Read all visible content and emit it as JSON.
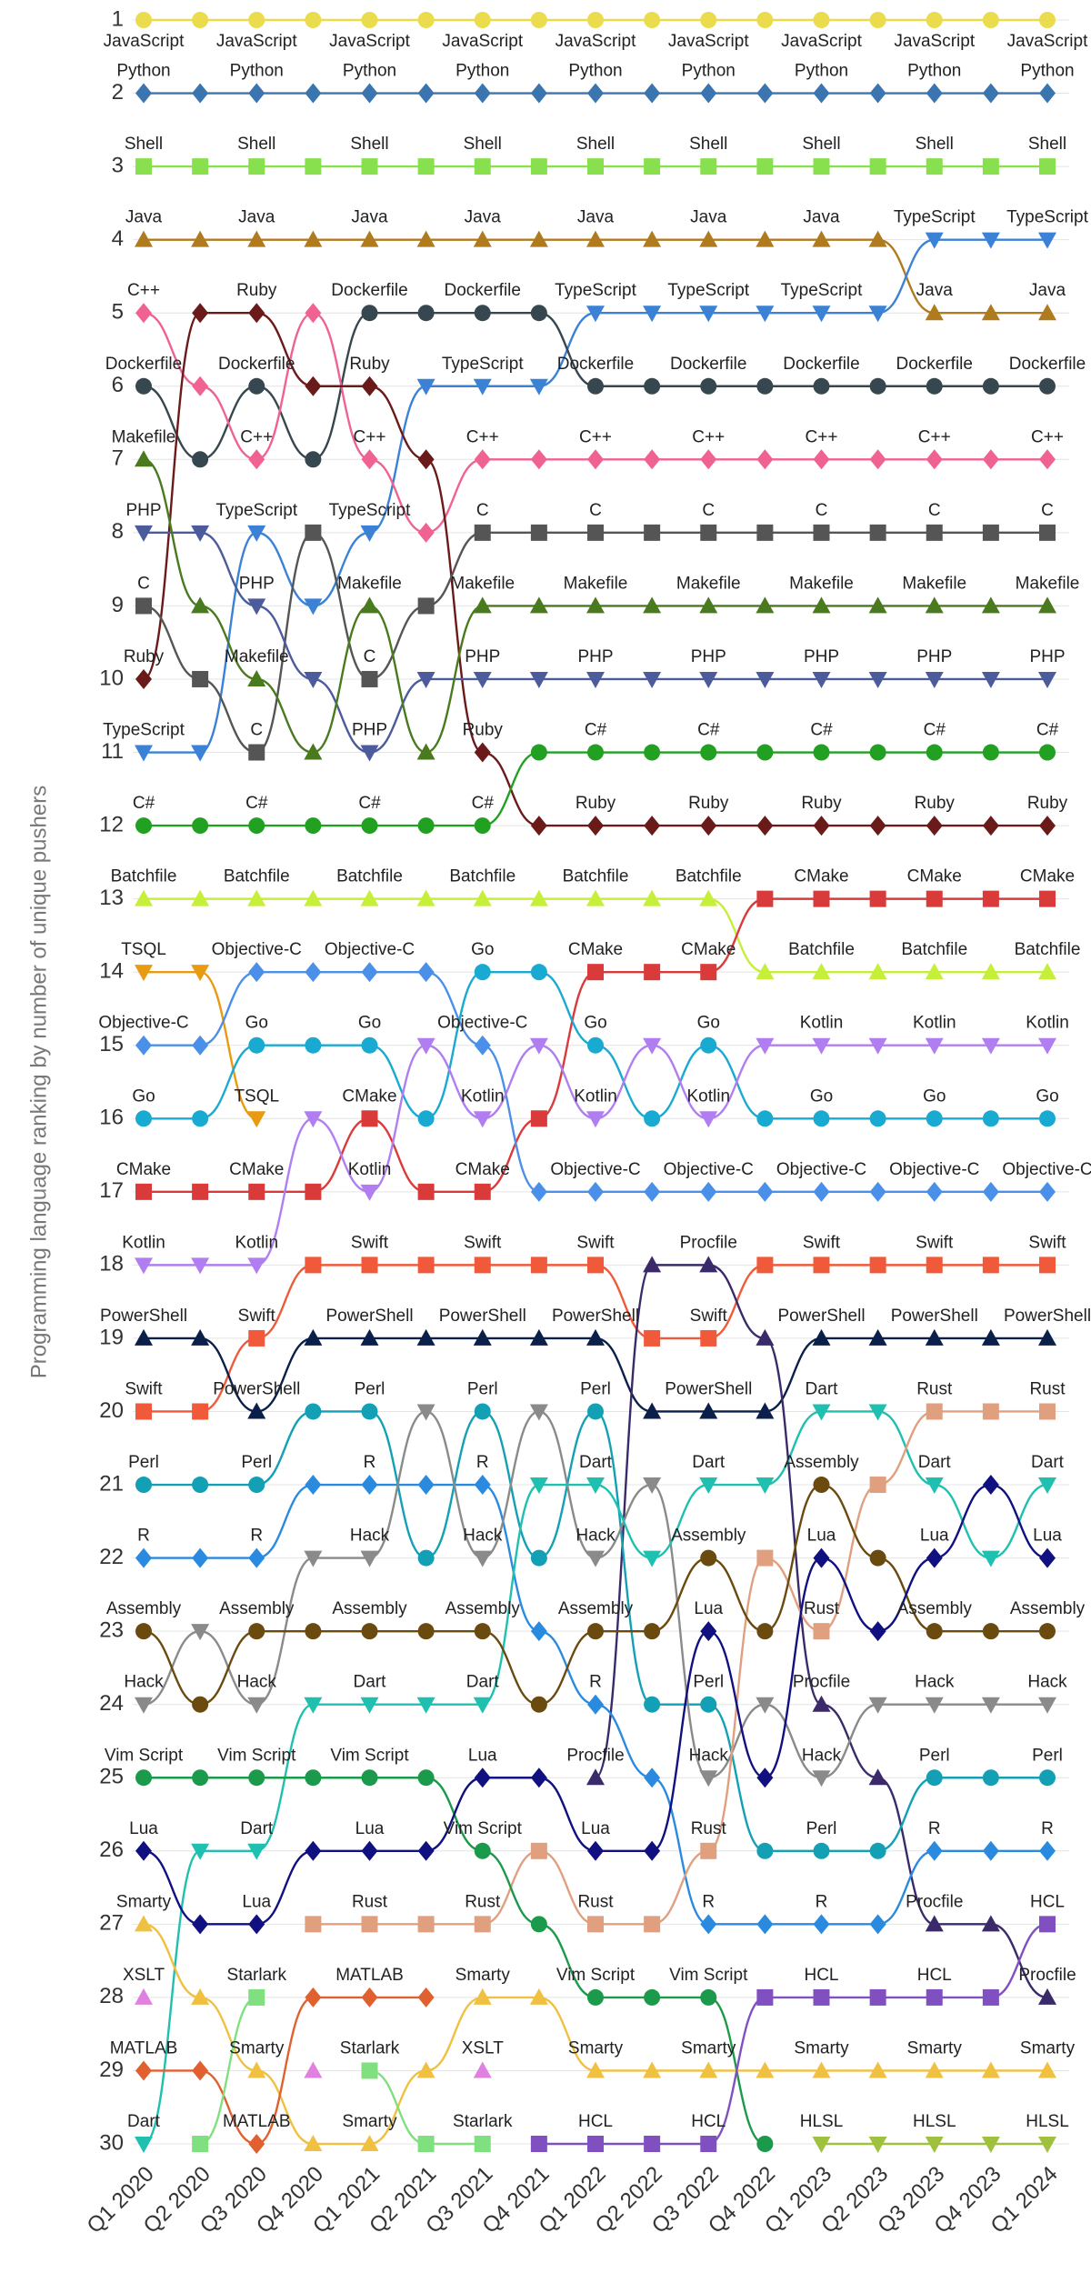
{
  "chart_data": {
    "type": "bump",
    "y_label": "Programming language ranking by number of unique pushers",
    "categories": [
      "Q1 2020",
      "Q2 2020",
      "Q3 2020",
      "Q4 2020",
      "Q1 2021",
      "Q2 2021",
      "Q3 2021",
      "Q4 2021",
      "Q1 2022",
      "Q2 2022",
      "Q3 2022",
      "Q4 2022",
      "Q1 2023",
      "Q2 2023",
      "Q3 2023",
      "Q4 2023",
      "Q1 2024"
    ],
    "ylim": [
      1,
      30
    ],
    "y_reversed": true,
    "yticks": [
      1,
      2,
      3,
      4,
      5,
      6,
      7,
      8,
      9,
      10,
      11,
      12,
      13,
      14,
      15,
      16,
      17,
      18,
      19,
      20,
      21,
      22,
      23,
      24,
      25,
      26,
      27,
      28,
      29,
      30
    ],
    "grid": true,
    "series": [
      {
        "name": "JavaScript",
        "color": "#ebdc4e",
        "marker": "circle",
        "values": [
          1,
          1,
          1,
          1,
          1,
          1,
          1,
          1,
          1,
          1,
          1,
          1,
          1,
          1,
          1,
          1,
          1
        ]
      },
      {
        "name": "Python",
        "color": "#3a75b0",
        "marker": "diamond",
        "values": [
          2,
          2,
          2,
          2,
          2,
          2,
          2,
          2,
          2,
          2,
          2,
          2,
          2,
          2,
          2,
          2,
          2
        ]
      },
      {
        "name": "Shell",
        "color": "#89e04e",
        "marker": "square",
        "values": [
          3,
          3,
          3,
          3,
          3,
          3,
          3,
          3,
          3,
          3,
          3,
          3,
          3,
          3,
          3,
          3,
          3
        ]
      },
      {
        "name": "Java",
        "color": "#b07a1e",
        "marker": "triangle",
        "values": [
          4,
          4,
          4,
          4,
          4,
          4,
          4,
          4,
          4,
          4,
          4,
          4,
          4,
          4,
          5,
          5,
          5
        ]
      },
      {
        "name": "TypeScript",
        "color": "#3b82d6",
        "marker": "triangle-down",
        "values": [
          11,
          11,
          8,
          9,
          8,
          6,
          6,
          6,
          5,
          5,
          5,
          5,
          5,
          5,
          4,
          4,
          4
        ]
      },
      {
        "name": "Dockerfile",
        "color": "#37474f",
        "marker": "circle",
        "values": [
          6,
          7,
          6,
          7,
          5,
          5,
          5,
          5,
          6,
          6,
          6,
          6,
          6,
          6,
          6,
          6,
          6
        ]
      },
      {
        "name": "C++",
        "color": "#f06292",
        "marker": "diamond",
        "values": [
          5,
          6,
          7,
          5,
          7,
          8,
          7,
          7,
          7,
          7,
          7,
          7,
          7,
          7,
          7,
          7,
          7
        ]
      },
      {
        "name": "Ruby",
        "color": "#6b1a1a",
        "marker": "diamond",
        "values": [
          10,
          5,
          5,
          6,
          6,
          7,
          11,
          12,
          12,
          12,
          12,
          12,
          12,
          12,
          12,
          12,
          12
        ]
      },
      {
        "name": "C",
        "color": "#555555",
        "marker": "square",
        "values": [
          9,
          10,
          11,
          8,
          10,
          9,
          8,
          8,
          8,
          8,
          8,
          8,
          8,
          8,
          8,
          8,
          8
        ]
      },
      {
        "name": "PHP",
        "color": "#4c5b9c",
        "marker": "triangle-down",
        "values": [
          8,
          8,
          9,
          10,
          11,
          10,
          10,
          10,
          10,
          10,
          10,
          10,
          10,
          10,
          10,
          10,
          10
        ]
      },
      {
        "name": "Makefile",
        "color": "#4a7a1e",
        "marker": "triangle",
        "values": [
          7,
          9,
          10,
          11,
          9,
          11,
          9,
          9,
          9,
          9,
          9,
          9,
          9,
          9,
          9,
          9,
          9
        ]
      },
      {
        "name": "C#",
        "color": "#22a022",
        "marker": "circle",
        "values": [
          12,
          12,
          12,
          12,
          12,
          12,
          12,
          11,
          11,
          11,
          11,
          11,
          11,
          11,
          11,
          11,
          11
        ]
      },
      {
        "name": "Batchfile",
        "color": "#c6ef3a",
        "marker": "triangle",
        "values": [
          13,
          13,
          13,
          13,
          13,
          13,
          13,
          13,
          13,
          13,
          13,
          14,
          14,
          14,
          14,
          14,
          14
        ]
      },
      {
        "name": "CMake",
        "color": "#d93a3a",
        "marker": "square",
        "values": [
          17,
          17,
          17,
          17,
          16,
          17,
          17,
          16,
          14,
          14,
          14,
          13,
          13,
          13,
          13,
          13,
          13
        ]
      },
      {
        "name": "TSQL",
        "color": "#e89a10",
        "marker": "triangle-down",
        "values": [
          14,
          14,
          16,
          null,
          null,
          null,
          null,
          null,
          null,
          null,
          null,
          null,
          null,
          null,
          null,
          null,
          null
        ]
      },
      {
        "name": "Objective-C",
        "color": "#4a90e8",
        "marker": "diamond",
        "values": [
          15,
          15,
          14,
          14,
          14,
          14,
          15,
          17,
          17,
          17,
          17,
          17,
          17,
          17,
          17,
          17,
          17
        ]
      },
      {
        "name": "Go",
        "color": "#19aad1",
        "marker": "circle",
        "values": [
          16,
          16,
          15,
          15,
          15,
          16,
          14,
          14,
          15,
          16,
          15,
          16,
          16,
          16,
          16,
          16,
          16
        ]
      },
      {
        "name": "Kotlin",
        "color": "#b07ef0",
        "marker": "triangle-down",
        "values": [
          18,
          18,
          18,
          16,
          17,
          15,
          16,
          15,
          16,
          15,
          16,
          15,
          15,
          15,
          15,
          15,
          15
        ]
      },
      {
        "name": "Swift",
        "color": "#f05a3a",
        "marker": "square",
        "values": [
          20,
          20,
          19,
          18,
          18,
          18,
          18,
          18,
          18,
          19,
          19,
          18,
          18,
          18,
          18,
          18,
          18
        ]
      },
      {
        "name": "PowerShell",
        "color": "#0a1f4a",
        "marker": "triangle",
        "values": [
          19,
          19,
          20,
          19,
          19,
          19,
          19,
          19,
          19,
          20,
          20,
          20,
          19,
          19,
          19,
          19,
          19
        ]
      },
      {
        "name": "Procfile",
        "color": "#3a2a6a",
        "marker": "triangle",
        "values": [
          null,
          null,
          null,
          null,
          null,
          null,
          null,
          null,
          25,
          18,
          18,
          19,
          24,
          25,
          27,
          27,
          28
        ]
      },
      {
        "name": "Perl",
        "color": "#14a0b4",
        "marker": "circle",
        "values": [
          21,
          21,
          21,
          20,
          20,
          22,
          20,
          22,
          20,
          24,
          24,
          26,
          26,
          26,
          25,
          25,
          25
        ]
      },
      {
        "name": "R",
        "color": "#2a8ae0",
        "marker": "diamond",
        "values": [
          22,
          22,
          22,
          21,
          21,
          21,
          21,
          23,
          24,
          25,
          27,
          27,
          27,
          27,
          26,
          26,
          26
        ]
      },
      {
        "name": "Hack",
        "color": "#8a8a8a",
        "marker": "triangle-down",
        "values": [
          24,
          23,
          24,
          22,
          22,
          20,
          22,
          20,
          22,
          21,
          25,
          24,
          25,
          24,
          24,
          24,
          24
        ]
      },
      {
        "name": "Dart",
        "color": "#20c0b0",
        "marker": "triangle-down",
        "values": [
          30,
          26,
          26,
          24,
          24,
          24,
          24,
          21,
          21,
          22,
          21,
          21,
          20,
          20,
          21,
          22,
          21
        ]
      },
      {
        "name": "Rust",
        "color": "#e0a080",
        "marker": "square",
        "values": [
          null,
          null,
          null,
          27,
          27,
          27,
          27,
          26,
          27,
          27,
          26,
          22,
          23,
          21,
          20,
          20,
          20
        ]
      },
      {
        "name": "Assembly",
        "color": "#6b4a10",
        "marker": "circle",
        "values": [
          23,
          24,
          23,
          23,
          23,
          23,
          23,
          24,
          23,
          23,
          22,
          23,
          21,
          22,
          23,
          23,
          23
        ]
      },
      {
        "name": "Vim Script",
        "color": "#1a9a4a",
        "marker": "circle",
        "values": [
          25,
          25,
          25,
          25,
          25,
          25,
          26,
          27,
          28,
          28,
          28,
          30,
          null,
          null,
          null,
          null,
          null
        ]
      },
      {
        "name": "Lua",
        "color": "#101080",
        "marker": "diamond",
        "values": [
          26,
          27,
          27,
          26,
          26,
          26,
          25,
          25,
          26,
          26,
          23,
          25,
          22,
          23,
          22,
          21,
          22
        ]
      },
      {
        "name": "Smarty",
        "color": "#f0c040",
        "marker": "triangle",
        "values": [
          27,
          28,
          29,
          30,
          30,
          29,
          28,
          28,
          29,
          29,
          29,
          29,
          29,
          29,
          29,
          29,
          29
        ]
      },
      {
        "name": "MATLAB",
        "color": "#e06030",
        "marker": "diamond",
        "values": [
          29,
          29,
          30,
          28,
          28,
          28,
          null,
          null,
          null,
          null,
          null,
          null,
          null,
          null,
          null,
          null,
          null
        ]
      },
      {
        "name": "XSLT",
        "color": "#e080e0",
        "marker": "triangle",
        "values": [
          28,
          null,
          null,
          29,
          null,
          null,
          29,
          null,
          null,
          null,
          null,
          null,
          null,
          null,
          null,
          null,
          null
        ]
      },
      {
        "name": "Starlark",
        "color": "#80e080",
        "marker": "square",
        "values": [
          null,
          30,
          28,
          null,
          29,
          30,
          30,
          null,
          null,
          null,
          null,
          null,
          null,
          null,
          null,
          null,
          null
        ]
      },
      {
        "name": "HCL",
        "color": "#8050c0",
        "marker": "square",
        "values": [
          null,
          null,
          null,
          null,
          null,
          null,
          null,
          30,
          30,
          30,
          30,
          28,
          28,
          28,
          28,
          28,
          27
        ]
      },
      {
        "name": "HLSL",
        "color": "#a0c040",
        "marker": "triangle-down",
        "values": [
          null,
          null,
          null,
          null,
          null,
          null,
          null,
          null,
          null,
          null,
          null,
          null,
          30,
          30,
          30,
          30,
          30
        ]
      }
    ]
  }
}
